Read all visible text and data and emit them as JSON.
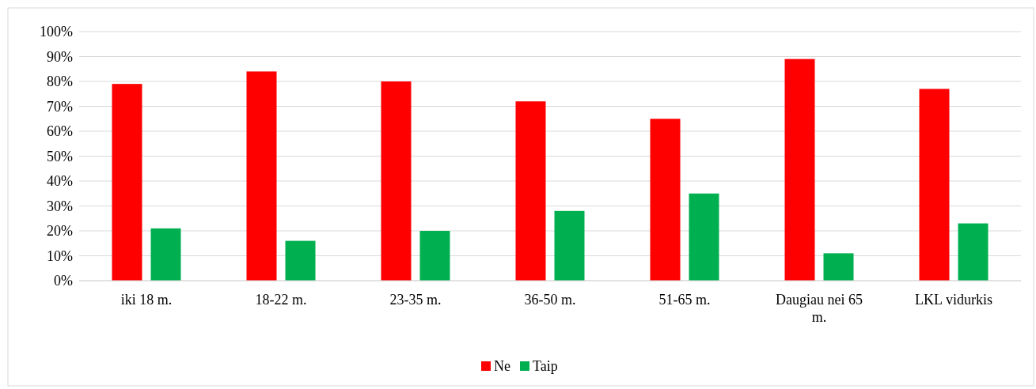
{
  "chart_data": {
    "type": "bar",
    "categories": [
      "iki 18 m.",
      "18-22 m.",
      "23-35 m.",
      "36-50 m.",
      "51-65 m.",
      "Daugiau nei 65 m.",
      "LKL vidurkis"
    ],
    "series": [
      {
        "name": "Ne",
        "color": "#ff0000",
        "values": [
          79,
          84,
          80,
          72,
          65,
          89,
          77
        ]
      },
      {
        "name": "Taip",
        "color": "#00b050",
        "values": [
          21,
          16,
          20,
          28,
          35,
          11,
          23
        ]
      }
    ],
    "ylim": [
      0,
      100
    ],
    "yticks": [
      {
        "value": 0,
        "label": "0%"
      },
      {
        "value": 10,
        "label": "10%"
      },
      {
        "value": 20,
        "label": "20%"
      },
      {
        "value": 30,
        "label": "30%"
      },
      {
        "value": 40,
        "label": "40%"
      },
      {
        "value": 50,
        "label": "50%"
      },
      {
        "value": 60,
        "label": "60%"
      },
      {
        "value": 70,
        "label": "70%"
      },
      {
        "value": 80,
        "label": "80%"
      },
      {
        "value": 90,
        "label": "90%"
      },
      {
        "value": 100,
        "label": "100%"
      }
    ],
    "grid": "y",
    "legend": "bottom"
  }
}
